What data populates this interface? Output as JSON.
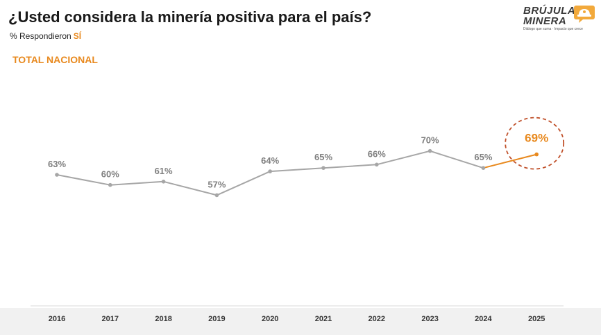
{
  "header": {
    "title": "¿Usted considera la minería positiva para el país?",
    "subtitle_prefix": "% Respondieron",
    "subtitle_highlight": "SÍ",
    "section": "TOTAL NACIONAL"
  },
  "logo": {
    "line1": "BRÚJULA",
    "line2": "MINERA",
    "tagline": "Diálogo que suma · Impacto que crece"
  },
  "colors": {
    "series_gray": "#a6a6a6",
    "accent_orange": "#e8891e",
    "accent_circle": "#c0502a",
    "label_gray": "#7f7f7f",
    "axis_text": "#333333"
  },
  "chart_data": {
    "type": "line",
    "title": "¿Usted considera la minería positiva para el país?",
    "xlabel": "",
    "ylabel": "",
    "categories": [
      "2016",
      "2017",
      "2018",
      "2019",
      "2020",
      "2021",
      "2022",
      "2023",
      "2024",
      "2025"
    ],
    "series": [
      {
        "values": [
          63,
          60,
          61,
          57,
          64,
          65,
          66,
          70,
          65,
          69
        ]
      }
    ],
    "data_labels": [
      "63%",
      "60%",
      "61%",
      "57%",
      "64%",
      "65%",
      "66%",
      "70%",
      "65%",
      "69%"
    ],
    "highlight": {
      "from_index": 8,
      "to_index": 9,
      "color": "orange",
      "circled_index": 9
    },
    "ylim": [
      0,
      100
    ],
    "grid": false,
    "legend": "none"
  }
}
